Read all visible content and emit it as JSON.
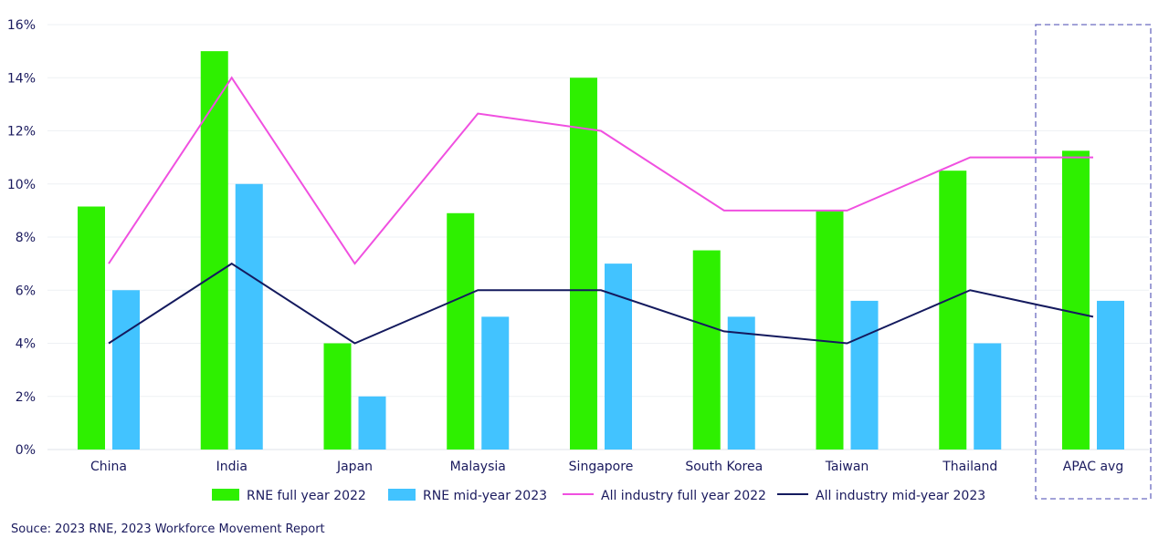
{
  "chart_data": {
    "type": "bar",
    "categories": [
      "China",
      "India",
      "Japan",
      "Malaysia",
      "Singapore",
      "South Korea",
      "Taiwan",
      "Thailand",
      "APAC avg"
    ],
    "series": [
      {
        "name": "RNE full year 2022",
        "kind": "bar",
        "color": "#2ef000",
        "values": [
          9.15,
          15,
          4,
          8.9,
          14,
          7.5,
          9,
          10.5,
          11.25
        ]
      },
      {
        "name": "RNE mid-year 2023",
        "kind": "bar",
        "color": "#42c3ff",
        "values": [
          6,
          10,
          2,
          5,
          7,
          5,
          5.6,
          4,
          5.6
        ]
      },
      {
        "name": "All industry full year 2022",
        "kind": "line",
        "color": "#f050e0",
        "values": [
          7,
          14,
          7,
          12.65,
          12,
          9,
          9,
          11,
          11
        ]
      },
      {
        "name": "All industry mid-year 2023",
        "kind": "line",
        "color": "#141a5e",
        "values": [
          4,
          7,
          4,
          6,
          6,
          4.45,
          4,
          6,
          5
        ]
      }
    ],
    "yticks": [
      "0%",
      "2%",
      "4%",
      "6%",
      "8%",
      "10%",
      "12%",
      "14%",
      "16%"
    ],
    "ylim": [
      0,
      16
    ],
    "grid": true,
    "legend": "bottom",
    "highlight": "APAC avg"
  },
  "source": "Souce: 2023 RNE, 2023 Workforce Movement Report"
}
